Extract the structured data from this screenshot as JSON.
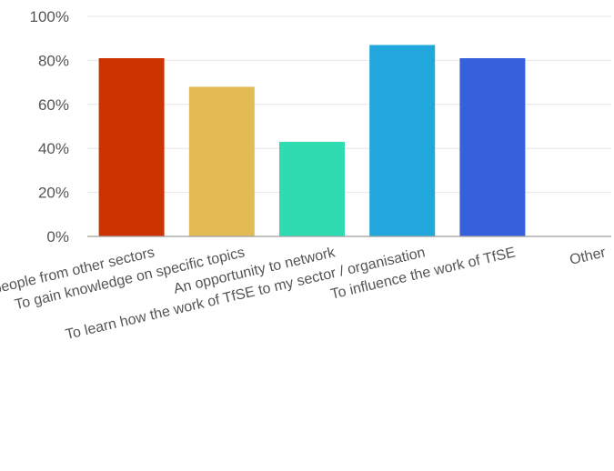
{
  "chart_data": {
    "type": "bar",
    "categories": [
      "...with people from other sectors",
      "To gain knowledge on specific topics",
      "An opportunity to network",
      "To learn how the work of TfSE to my sector / organisation",
      "To influence the work of TfSE",
      "Other"
    ],
    "values": [
      81,
      68,
      43,
      87,
      81,
      0
    ],
    "ylim": [
      0,
      100
    ],
    "yticks": [
      0,
      20,
      40,
      60,
      80,
      100
    ],
    "ytick_labels": [
      "0%",
      "20%",
      "40%",
      "60%",
      "80%",
      "100%"
    ],
    "value_unit": "%",
    "grid": true,
    "colors": [
      "#cc3300",
      "#e2bb55",
      "#2fdcb0",
      "#22a7dc",
      "#3761dc",
      "#999999"
    ]
  }
}
